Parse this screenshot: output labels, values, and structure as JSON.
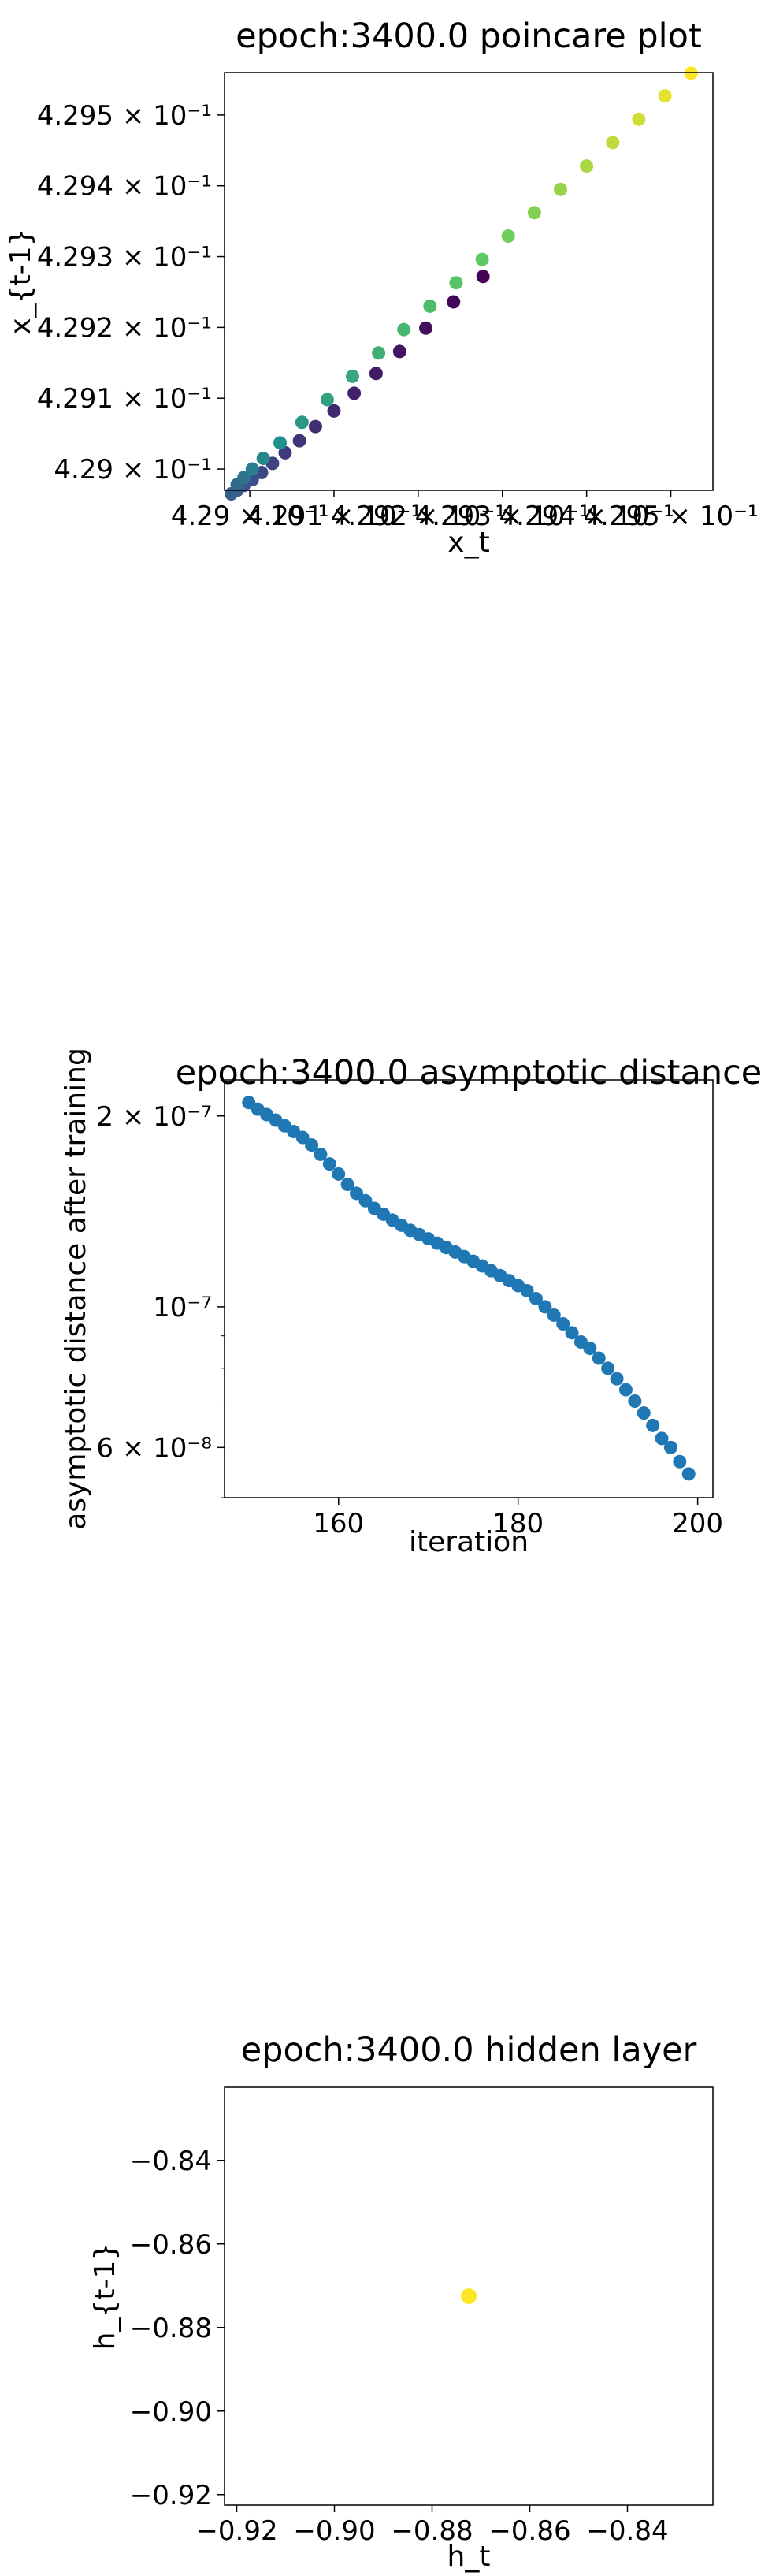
{
  "chart_data": [
    {
      "type": "scatter",
      "title": "epoch:3400.0 poincare plot",
      "xlabel": "x_t",
      "ylabel": "x_{t-1}",
      "xlim": [
        0.42897,
        0.42955
      ],
      "ylim": [
        0.42897,
        0.42956
      ],
      "xticks": [
        {
          "value": 0.429,
          "label": "4.29 × 10⁻¹"
        },
        {
          "value": 0.4291,
          "label": "4.291 × 10⁻¹"
        },
        {
          "value": 0.4292,
          "label": "4.292 × 10⁻¹"
        },
        {
          "value": 0.4293,
          "label": "4.293 × 10⁻¹"
        },
        {
          "value": 0.4294,
          "label": "4.294 × 10⁻¹"
        },
        {
          "value": 0.4295,
          "label": "4.295 × 10⁻¹"
        }
      ],
      "yticks": [
        {
          "value": 0.429,
          "label": "4.29 × 10⁻¹"
        },
        {
          "value": 0.4291,
          "label": "4.291 × 10⁻¹"
        },
        {
          "value": 0.4292,
          "label": "4.292 × 10⁻¹"
        },
        {
          "value": 0.4293,
          "label": "4.293 × 10⁻¹"
        },
        {
          "value": 0.4294,
          "label": "4.294 × 10⁻¹"
        },
        {
          "value": 0.4295,
          "label": "4.295 × 10⁻¹"
        }
      ],
      "colormap": "viridis",
      "points": [
        {
          "x": 0.429277,
          "y": 0.429272,
          "c": 0.0
        },
        {
          "x": 0.429242,
          "y": 0.429236,
          "c": 0.02
        },
        {
          "x": 0.429209,
          "y": 0.429199,
          "c": 0.04
        },
        {
          "x": 0.429178,
          "y": 0.429166,
          "c": 0.06
        },
        {
          "x": 0.42915,
          "y": 0.429135,
          "c": 0.08
        },
        {
          "x": 0.429124,
          "y": 0.429107,
          "c": 0.1
        },
        {
          "x": 0.4291,
          "y": 0.429082,
          "c": 0.12
        },
        {
          "x": 0.429078,
          "y": 0.42906,
          "c": 0.14
        },
        {
          "x": 0.429059,
          "y": 0.42904,
          "c": 0.16
        },
        {
          "x": 0.429042,
          "y": 0.429023,
          "c": 0.18
        },
        {
          "x": 0.429027,
          "y": 0.429008,
          "c": 0.2
        },
        {
          "x": 0.429014,
          "y": 0.428995,
          "c": 0.22
        },
        {
          "x": 0.429003,
          "y": 0.428985,
          "c": 0.24
        },
        {
          "x": 0.428993,
          "y": 0.428977,
          "c": 0.26
        },
        {
          "x": 0.428985,
          "y": 0.42897,
          "c": 0.28
        },
        {
          "x": 0.428978,
          "y": 0.428965,
          "c": 0.3
        },
        {
          "x": 0.428985,
          "y": 0.428978,
          "c": 0.34
        },
        {
          "x": 0.428993,
          "y": 0.428988,
          "c": 0.38
        },
        {
          "x": 0.429003,
          "y": 0.429,
          "c": 0.42
        },
        {
          "x": 0.429016,
          "y": 0.429015,
          "c": 0.46
        },
        {
          "x": 0.429036,
          "y": 0.429037,
          "c": 0.5
        },
        {
          "x": 0.429062,
          "y": 0.429066,
          "c": 0.54
        },
        {
          "x": 0.429092,
          "y": 0.429098,
          "c": 0.57
        },
        {
          "x": 0.429122,
          "y": 0.429131,
          "c": 0.6
        },
        {
          "x": 0.429153,
          "y": 0.429164,
          "c": 0.63
        },
        {
          "x": 0.429183,
          "y": 0.429197,
          "c": 0.66
        },
        {
          "x": 0.429214,
          "y": 0.42923,
          "c": 0.69
        },
        {
          "x": 0.429245,
          "y": 0.429263,
          "c": 0.72
        },
        {
          "x": 0.429276,
          "y": 0.429296,
          "c": 0.75
        },
        {
          "x": 0.429307,
          "y": 0.429329,
          "c": 0.78
        },
        {
          "x": 0.429338,
          "y": 0.429362,
          "c": 0.81
        },
        {
          "x": 0.429369,
          "y": 0.429395,
          "c": 0.84
        },
        {
          "x": 0.4294,
          "y": 0.429428,
          "c": 0.87
        },
        {
          "x": 0.429431,
          "y": 0.429461,
          "c": 0.9
        },
        {
          "x": 0.429462,
          "y": 0.429494,
          "c": 0.93
        },
        {
          "x": 0.429493,
          "y": 0.429527,
          "c": 0.96
        },
        {
          "x": 0.429524,
          "y": 0.429559,
          "c": 1.0
        }
      ]
    },
    {
      "type": "scatter",
      "title": "epoch:3400.0 asymptotic distance",
      "xlabel": "iteration",
      "ylabel": "asymptotic distance after training",
      "yscale": "log",
      "xlim": [
        147.3,
        201.7
      ],
      "ylim": [
        5e-08,
        2.28e-07
      ],
      "xticks": [
        {
          "value": 160,
          "label": "160"
        },
        {
          "value": 180,
          "label": "180"
        },
        {
          "value": 200,
          "label": "200"
        }
      ],
      "yticks": [
        {
          "value": 6e-08,
          "label": "6 × 10⁻⁸"
        },
        {
          "value": 1e-07,
          "label": "10⁻⁷"
        },
        {
          "value": 2e-07,
          "label": "2 × 10⁻⁷"
        }
      ],
      "color": "#1f77b4",
      "x": [
        150,
        151,
        152,
        153,
        154,
        155,
        156,
        157,
        158,
        159,
        160,
        161,
        162,
        163,
        164,
        165,
        166,
        167,
        168,
        169,
        170,
        171,
        172,
        173,
        174,
        175,
        176,
        177,
        178,
        179,
        180,
        181,
        182,
        183,
        184,
        185,
        186,
        187,
        188,
        189,
        190,
        191,
        192,
        193,
        194,
        195,
        196,
        197,
        198,
        199
      ],
      "y": [
        2.1e-07,
        2.05e-07,
        2.01e-07,
        1.97e-07,
        1.93e-07,
        1.89e-07,
        1.85e-07,
        1.8e-07,
        1.74e-07,
        1.68e-07,
        1.62e-07,
        1.56e-07,
        1.51e-07,
        1.47e-07,
        1.43e-07,
        1.4e-07,
        1.37e-07,
        1.345e-07,
        1.32e-07,
        1.3e-07,
        1.28e-07,
        1.26e-07,
        1.24e-07,
        1.22e-07,
        1.2e-07,
        1.18e-07,
        1.16e-07,
        1.14e-07,
        1.12e-07,
        1.1e-07,
        1.08e-07,
        1.06e-07,
        1.03e-07,
        1e-07,
        9.7e-08,
        9.4e-08,
        9.1e-08,
        8.8e-08,
        8.6e-08,
        8.3e-08,
        8e-08,
        7.7e-08,
        7.4e-08,
        7.1e-08,
        6.8e-08,
        6.5e-08,
        6.2e-08,
        6e-08,
        5.7e-08,
        5.45e-08
      ]
    },
    {
      "type": "scatter",
      "title": "epoch:3400.0 hidden layer",
      "xlabel": "h_t",
      "ylabel": "h_{t-1}",
      "xlim": [
        -0.9225,
        -0.8225
      ],
      "ylim": [
        -0.9225,
        -0.8225
      ],
      "xticks": [
        {
          "value": -0.92,
          "label": "−0.92"
        },
        {
          "value": -0.9,
          "label": "−0.90"
        },
        {
          "value": -0.88,
          "label": "−0.88"
        },
        {
          "value": -0.86,
          "label": "−0.86"
        },
        {
          "value": -0.84,
          "label": "−0.84"
        }
      ],
      "yticks": [
        {
          "value": -0.92,
          "label": "−0.92"
        },
        {
          "value": -0.9,
          "label": "−0.90"
        },
        {
          "value": -0.88,
          "label": "−0.88"
        },
        {
          "value": -0.86,
          "label": "−0.86"
        },
        {
          "value": -0.84,
          "label": "−0.84"
        }
      ],
      "color": "#fde725",
      "points": [
        {
          "x": -0.8725,
          "y": -0.8725
        }
      ]
    }
  ]
}
